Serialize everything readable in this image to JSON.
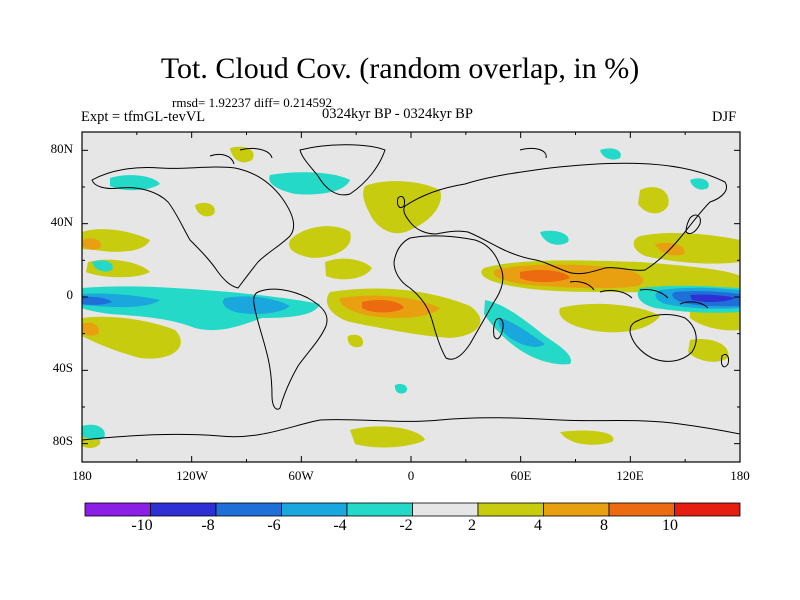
{
  "title": "Tot. Cloud Cov. (random overlap, in %)",
  "stats": "rmsd= 1.92237 diff= 0.214592",
  "experiment": "Expt = tfmGL-tevVL",
  "period": "0324kyr BP - 0324kyr BP",
  "season": "DJF",
  "map": {
    "projection": "cylindrical equidistant",
    "lon_range": [
      -180,
      180
    ],
    "lat_range": [
      -90,
      90
    ],
    "ocean_fill": "#e6e6e6",
    "coastline_color": "#000000"
  },
  "x_ticks": [
    "180",
    "120W",
    "60W",
    "0",
    "60E",
    "120E",
    "180"
  ],
  "y_ticks": [
    "80N",
    "40N",
    "0",
    "40S",
    "80S"
  ],
  "colorbar": {
    "colors": [
      "#8c1fe6",
      "#2f2fd6",
      "#1e6fd8",
      "#1aa7dd",
      "#25d9c8",
      "#e6e6e6",
      "#c8cc0f",
      "#e8a010",
      "#ec6a10",
      "#e61e12"
    ],
    "labels": [
      "-10",
      "-8",
      "-6",
      "-4",
      "-2",
      "2",
      "4",
      "8",
      "10"
    ]
  }
}
